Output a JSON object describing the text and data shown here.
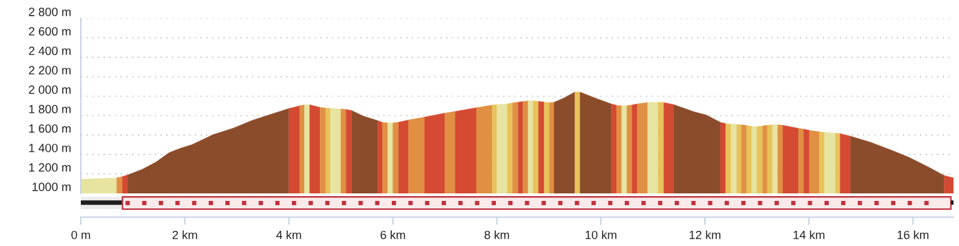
{
  "chart_data": {
    "type": "area",
    "series": [
      {
        "color": "#e6e4a0",
        "x": [
          0,
          0.69
        ],
        "values": [
          1146,
          1160
        ]
      },
      {
        "color": "#e08f43",
        "x": [
          0.69,
          0.8
        ],
        "values": [
          1160,
          1174
        ]
      },
      {
        "color": "#d44a32",
        "x": [
          0.8,
          0.9
        ],
        "values": [
          1174,
          1190
        ]
      },
      {
        "color": "#8b4c2b",
        "x": [
          0.9,
          1.18,
          1.44,
          1.7,
          1.92,
          2.14,
          2.54,
          2.93,
          3.28,
          3.59,
          4.0
        ],
        "values": [
          1190,
          1247,
          1321,
          1420,
          1466,
          1502,
          1604,
          1671,
          1749,
          1803,
          1874
        ]
      },
      {
        "color": "#d44a32",
        "x": [
          4.0,
          4.21
        ],
        "values": [
          1874,
          1902
        ]
      },
      {
        "color": "#e08f43",
        "x": [
          4.21,
          4.3
        ],
        "values": [
          1902,
          1912
        ]
      },
      {
        "color": "#e6e4a0",
        "x": [
          4.3,
          4.4
        ],
        "values": [
          1912,
          1912
        ]
      },
      {
        "color": "#d44a32",
        "x": [
          4.4,
          4.6
        ],
        "values": [
          1912,
          1886
        ]
      },
      {
        "color": "#e08f43",
        "x": [
          4.6,
          4.71
        ],
        "values": [
          1886,
          1878
        ]
      },
      {
        "color": "#e8c25a",
        "x": [
          4.71,
          4.8
        ],
        "values": [
          1878,
          1875
        ]
      },
      {
        "color": "#e6e4a0",
        "x": [
          4.8,
          5.0
        ],
        "values": [
          1875,
          1869
        ]
      },
      {
        "color": "#e08f43",
        "x": [
          5.0,
          5.1
        ],
        "values": [
          1869,
          1864
        ]
      },
      {
        "color": "#d44a32",
        "x": [
          5.1,
          5.21
        ],
        "values": [
          1864,
          1853
        ]
      },
      {
        "color": "#8b4c2b",
        "x": [
          5.21,
          5.43,
          5.71
        ],
        "values": [
          1853,
          1796,
          1749
        ]
      },
      {
        "color": "#d44a32",
        "x": [
          5.71,
          5.8
        ],
        "values": [
          1749,
          1731
        ]
      },
      {
        "color": "#e08f43",
        "x": [
          5.8,
          5.9
        ],
        "values": [
          1731,
          1726
        ]
      },
      {
        "color": "#e6e4a0",
        "x": [
          5.9,
          6.0
        ],
        "values": [
          1726,
          1726
        ]
      },
      {
        "color": "#e08f43",
        "x": [
          6.0,
          6.11
        ],
        "values": [
          1726,
          1733
        ]
      },
      {
        "color": "#d44a32",
        "x": [
          6.11,
          6.3
        ],
        "values": [
          1733,
          1756
        ]
      },
      {
        "color": "#e08f43",
        "x": [
          6.3,
          6.61
        ],
        "values": [
          1756,
          1785
        ]
      },
      {
        "color": "#d44a32",
        "x": [
          6.61,
          7.0
        ],
        "values": [
          1785,
          1827
        ]
      },
      {
        "color": "#e08f43",
        "x": [
          7.0,
          7.2
        ],
        "values": [
          1827,
          1844
        ]
      },
      {
        "color": "#d44a32",
        "x": [
          7.2,
          7.61
        ],
        "values": [
          1844,
          1883
        ]
      },
      {
        "color": "#e08f43",
        "x": [
          7.61,
          7.91
        ],
        "values": [
          1883,
          1909
        ]
      },
      {
        "color": "#e8c25a",
        "x": [
          7.91,
          8.0
        ],
        "values": [
          1909,
          1914
        ]
      },
      {
        "color": "#e6e4a0",
        "x": [
          8.0,
          8.2
        ],
        "values": [
          1914,
          1921
        ]
      },
      {
        "color": "#e8c25a",
        "x": [
          8.2,
          8.3
        ],
        "values": [
          1921,
          1932
        ]
      },
      {
        "color": "#e08f43",
        "x": [
          8.3,
          8.41
        ],
        "values": [
          1932,
          1939
        ]
      },
      {
        "color": "#d44a32",
        "x": [
          8.41,
          8.5
        ],
        "values": [
          1939,
          1945
        ]
      },
      {
        "color": "#e08f43",
        "x": [
          8.5,
          8.6
        ],
        "values": [
          1945,
          1952
        ]
      },
      {
        "color": "#e6e4a0",
        "x": [
          8.6,
          8.7
        ],
        "values": [
          1952,
          1952
        ]
      },
      {
        "color": "#e8c25a",
        "x": [
          8.7,
          8.8
        ],
        "values": [
          1952,
          1947
        ]
      },
      {
        "color": "#d44a32",
        "x": [
          8.8,
          8.91
        ],
        "values": [
          1947,
          1940
        ]
      },
      {
        "color": "#e8c25a",
        "x": [
          8.91,
          9.01
        ],
        "values": [
          1940,
          1933
        ]
      },
      {
        "color": "#e08f43",
        "x": [
          9.01,
          9.1
        ],
        "values": [
          1933,
          1938
        ]
      },
      {
        "color": "#8b4c2b",
        "x": [
          9.1,
          9.3,
          9.5
        ],
        "values": [
          1938,
          1985,
          2044
        ]
      },
      {
        "color": "#e8c25a",
        "x": [
          9.5,
          9.6
        ],
        "values": [
          2044,
          2042
        ]
      },
      {
        "color": "#8b4c2b",
        "x": [
          9.6,
          9.91,
          10.2
        ],
        "values": [
          2042,
          1978,
          1921
        ]
      },
      {
        "color": "#d44a32",
        "x": [
          10.2,
          10.3
        ],
        "values": [
          1921,
          1907
        ]
      },
      {
        "color": "#e08f43",
        "x": [
          10.3,
          10.4
        ],
        "values": [
          1907,
          1902
        ]
      },
      {
        "color": "#e6e4a0",
        "x": [
          10.4,
          10.5
        ],
        "values": [
          1902,
          1904
        ]
      },
      {
        "color": "#e08f43",
        "x": [
          10.5,
          10.6
        ],
        "values": [
          1904,
          1911
        ]
      },
      {
        "color": "#d44a32",
        "x": [
          10.6,
          10.7
        ],
        "values": [
          1911,
          1921
        ]
      },
      {
        "color": "#e08f43",
        "x": [
          10.7,
          10.9
        ],
        "values": [
          1921,
          1936
        ]
      },
      {
        "color": "#e6e4a0",
        "x": [
          10.9,
          11.1
        ],
        "values": [
          1936,
          1938
        ]
      },
      {
        "color": "#e8c25a",
        "x": [
          11.1,
          11.21
        ],
        "values": [
          1938,
          1936
        ]
      },
      {
        "color": "#d44a32",
        "x": [
          11.21,
          11.4
        ],
        "values": [
          1936,
          1914
        ]
      },
      {
        "color": "#8b4c2b",
        "x": [
          11.4,
          11.8,
          12.02,
          12.3
        ],
        "values": [
          1914,
          1839,
          1808,
          1731
        ]
      },
      {
        "color": "#d44a32",
        "x": [
          12.3,
          12.4
        ],
        "values": [
          1731,
          1719
        ]
      },
      {
        "color": "#e8c25a",
        "x": [
          12.4,
          12.5
        ],
        "values": [
          1719,
          1714
        ]
      },
      {
        "color": "#e6e4a0",
        "x": [
          12.5,
          12.61
        ],
        "values": [
          1714,
          1710
        ]
      },
      {
        "color": "#e8c25a",
        "x": [
          12.61,
          12.7
        ],
        "values": [
          1710,
          1707
        ]
      },
      {
        "color": "#e08f43",
        "x": [
          12.7,
          12.8
        ],
        "values": [
          1707,
          1700
        ]
      },
      {
        "color": "#e8c25a",
        "x": [
          12.8,
          12.9
        ],
        "values": [
          1700,
          1690
        ]
      },
      {
        "color": "#e6e4a0",
        "x": [
          12.9,
          13.0
        ],
        "values": [
          1690,
          1688
        ]
      },
      {
        "color": "#e8c25a",
        "x": [
          13.0,
          13.11
        ],
        "values": [
          1688,
          1695
        ]
      },
      {
        "color": "#e08f43",
        "x": [
          13.11,
          13.2
        ],
        "values": [
          1695,
          1702
        ]
      },
      {
        "color": "#e8c25a",
        "x": [
          13.2,
          13.3
        ],
        "values": [
          1702,
          1707
        ]
      },
      {
        "color": "#e6e4a0",
        "x": [
          13.3,
          13.4
        ],
        "values": [
          1707,
          1707
        ]
      },
      {
        "color": "#e08f43",
        "x": [
          13.4,
          13.5
        ],
        "values": [
          1707,
          1702
        ]
      },
      {
        "color": "#d44a32",
        "x": [
          13.5,
          13.8
        ],
        "values": [
          1702,
          1669
        ]
      },
      {
        "color": "#e08f43",
        "x": [
          13.8,
          13.9
        ],
        "values": [
          1669,
          1662
        ]
      },
      {
        "color": "#d44a32",
        "x": [
          13.9,
          14.01
        ],
        "values": [
          1662,
          1648
        ]
      },
      {
        "color": "#e08f43",
        "x": [
          14.01,
          14.2
        ],
        "values": [
          1648,
          1634
        ]
      },
      {
        "color": "#e8c25a",
        "x": [
          14.2,
          14.3
        ],
        "values": [
          1634,
          1627
        ]
      },
      {
        "color": "#e6e4a0",
        "x": [
          14.3,
          14.51
        ],
        "values": [
          1627,
          1620
        ]
      },
      {
        "color": "#e8c25a",
        "x": [
          14.51,
          14.6
        ],
        "values": [
          1620,
          1616
        ]
      },
      {
        "color": "#d44a32",
        "x": [
          14.6,
          14.8
        ],
        "values": [
          1616,
          1589
        ]
      },
      {
        "color": "#8b4c2b",
        "x": [
          14.8,
          15.18,
          15.62,
          15.92,
          16.32,
          16.6
        ],
        "values": [
          1589,
          1528,
          1438,
          1372,
          1266,
          1184
        ]
      },
      {
        "color": "#d44a32",
        "x": [
          16.6,
          16.78
        ],
        "values": [
          1184,
          1160
        ]
      }
    ],
    "xlim": [
      0,
      16.78
    ],
    "xticks": [
      {
        "value": 0,
        "label": "0 m"
      },
      {
        "value": 2,
        "label": "2 km"
      },
      {
        "value": 4,
        "label": "4 km"
      },
      {
        "value": 6,
        "label": "6 km"
      },
      {
        "value": 8,
        "label": "8 km"
      },
      {
        "value": 10,
        "label": "10 km"
      },
      {
        "value": 12,
        "label": "12 km"
      },
      {
        "value": 14,
        "label": "14 km"
      },
      {
        "value": 16,
        "label": "16 km"
      }
    ],
    "ylim": [
      1000,
      2800
    ],
    "yticks": [
      {
        "value": 1000,
        "label": "1000 m"
      },
      {
        "value": 1200,
        "label": "1 200 m"
      },
      {
        "value": 1400,
        "label": "1 400 m"
      },
      {
        "value": 1600,
        "label": "1 600 m"
      },
      {
        "value": 1800,
        "label": "1 800 m"
      },
      {
        "value": 2000,
        "label": "2 000 m"
      },
      {
        "value": 2200,
        "label": "2 200 m"
      },
      {
        "value": 2400,
        "label": "2 400 m"
      },
      {
        "value": 2600,
        "label": "2 600 m"
      },
      {
        "value": 2800,
        "label": "2 800 m"
      }
    ],
    "grid": "y"
  }
}
